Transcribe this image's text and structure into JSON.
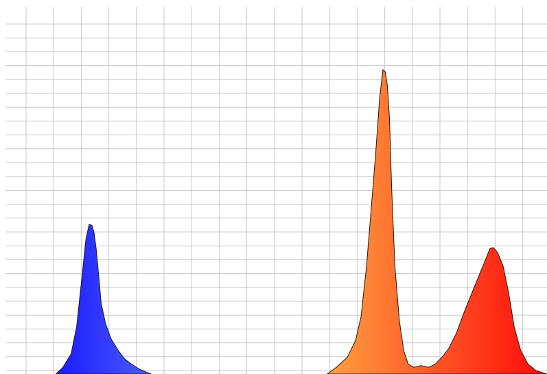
{
  "chart_data": {
    "type": "area",
    "title": "",
    "xlabel": "",
    "ylabel": "",
    "grid": true,
    "legend": "none",
    "xlim": [
      0,
      100
    ],
    "ylim": [
      0,
      100
    ],
    "series": [
      {
        "color_from": "#1a1aff",
        "color_to": "#4a5cff",
        "x": [
          10.2,
          11.5,
          13.0,
          14.0,
          15.0,
          15.7,
          16.3,
          16.8,
          17.2,
          17.6,
          18.0,
          18.5,
          19.3,
          20.3,
          21.6,
          22.8,
          24.0,
          25.4,
          26.8,
          27.6
        ],
        "y": [
          0,
          2,
          6,
          14,
          29,
          40,
          44.5,
          44.2,
          42,
          37,
          30,
          21,
          15,
          10.5,
          7,
          4.5,
          3,
          1.5,
          0.5,
          0
        ]
      },
      {
        "color_from": "#ffa040",
        "color_to": "#ff0a0a",
        "x": [
          59.8,
          61.5,
          63.5,
          65.0,
          66.0,
          67.0,
          67.8,
          68.7,
          69.4,
          70.0,
          70.4,
          70.8,
          71.2,
          71.6,
          72.2,
          73.0,
          73.8,
          74.6,
          75.6,
          77.0,
          78.4,
          79.6,
          80.8,
          82.0,
          83.4,
          85.0,
          86.5,
          88.0,
          89.0,
          89.6,
          90.2,
          91.0,
          92.0,
          93.0,
          94.0,
          95.2,
          96.5,
          98.0,
          100.0
        ],
        "y": [
          0,
          2,
          5,
          10,
          17,
          32,
          48,
          66,
          82,
          90.5,
          90,
          86,
          76,
          55,
          32,
          16,
          7,
          3,
          2,
          2.5,
          2,
          3,
          5,
          7.5,
          12,
          19,
          25,
          31,
          35,
          37.4,
          37.6,
          36,
          32,
          24,
          14,
          7,
          3,
          1,
          0
        ]
      }
    ]
  }
}
